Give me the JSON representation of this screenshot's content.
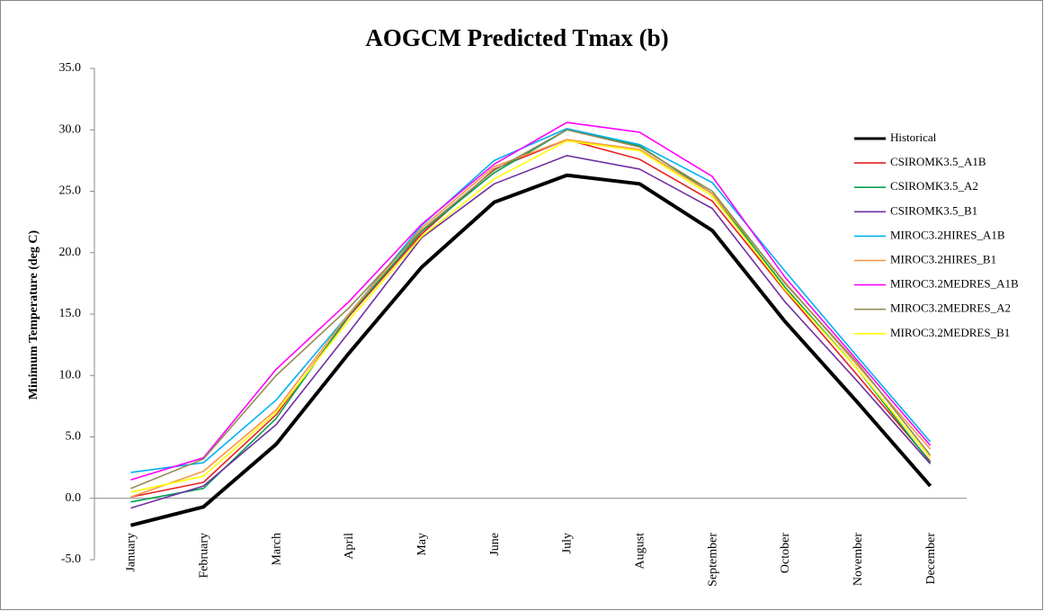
{
  "chart_data": {
    "type": "line",
    "title": "AOGCM Predicted Tmax (b)",
    "y_label": "Minimum Temperature (deg C)",
    "categories": [
      "January",
      "February",
      "March",
      "April",
      "May",
      "June",
      "July",
      "August",
      "September",
      "October",
      "November",
      "December"
    ],
    "ylim": [
      -5,
      35
    ],
    "yticks": [
      {
        "value": -5,
        "label": "-5.0"
      },
      {
        "value": 0,
        "label": "0.0"
      },
      {
        "value": 5,
        "label": "5.0"
      },
      {
        "value": 10,
        "label": "10.0"
      },
      {
        "value": 15,
        "label": "15.0"
      },
      {
        "value": 20,
        "label": "20.0"
      },
      {
        "value": 25,
        "label": "25.0"
      },
      {
        "value": 30,
        "label": "30.0"
      },
      {
        "value": 35,
        "label": "35.0"
      }
    ],
    "legend": "right",
    "series": [
      {
        "name": "Historical",
        "color": "#000000",
        "values": [
          -2.2,
          -0.7,
          4.4,
          11.8,
          18.8,
          24.1,
          26.3,
          25.6,
          21.8,
          14.4,
          7.8,
          1.0
        ]
      },
      {
        "name": "CSIROMK3.5_A1B",
        "color": "#e82020",
        "values": [
          0.1,
          1.3,
          6.8,
          14.8,
          21.5,
          26.8,
          29.2,
          27.6,
          24.2,
          16.9,
          10.0,
          3.0
        ]
      },
      {
        "name": "CSIROMK3.5_A2",
        "color": "#00a050",
        "values": [
          -0.3,
          0.8,
          6.5,
          14.9,
          21.7,
          26.5,
          30.0,
          28.7,
          24.8,
          17.2,
          10.5,
          2.9
        ]
      },
      {
        "name": "CSIROMK3.5_B1",
        "color": "#7030a0",
        "values": [
          -0.8,
          1.0,
          6.0,
          13.5,
          21.2,
          25.6,
          27.9,
          26.8,
          23.6,
          16.0,
          9.5,
          2.8
        ]
      },
      {
        "name": "MIROC3.2HIRES_A1B",
        "color": "#00b0f0",
        "values": [
          2.1,
          2.9,
          8.0,
          15.0,
          22.2,
          27.5,
          30.1,
          28.8,
          25.7,
          18.5,
          11.5,
          4.6
        ]
      },
      {
        "name": "MIROC3.2HIRES_B1",
        "color": "#f79646",
        "values": [
          0.1,
          2.2,
          7.2,
          15.0,
          22.0,
          27.0,
          29.2,
          28.4,
          24.8,
          17.6,
          10.8,
          4.0
        ]
      },
      {
        "name": "MIROC3.2MEDRES_A1B",
        "color": "#ff00ff",
        "values": [
          1.5,
          3.3,
          10.5,
          16.0,
          22.3,
          27.2,
          30.6,
          29.8,
          26.2,
          18.0,
          11.2,
          4.3
        ]
      },
      {
        "name": "MIROC3.2MEDRES_A2",
        "color": "#948a54",
        "values": [
          0.8,
          3.2,
          10.0,
          15.5,
          21.8,
          26.7,
          30.0,
          28.6,
          25.0,
          17.5,
          11.0,
          3.5
        ]
      },
      {
        "name": "MIROC3.2MEDRES_B1",
        "color": "#ffff00",
        "values": [
          0.5,
          1.8,
          7.0,
          14.5,
          21.3,
          26.0,
          29.1,
          28.3,
          24.6,
          17.0,
          10.5,
          3.3
        ]
      }
    ]
  }
}
